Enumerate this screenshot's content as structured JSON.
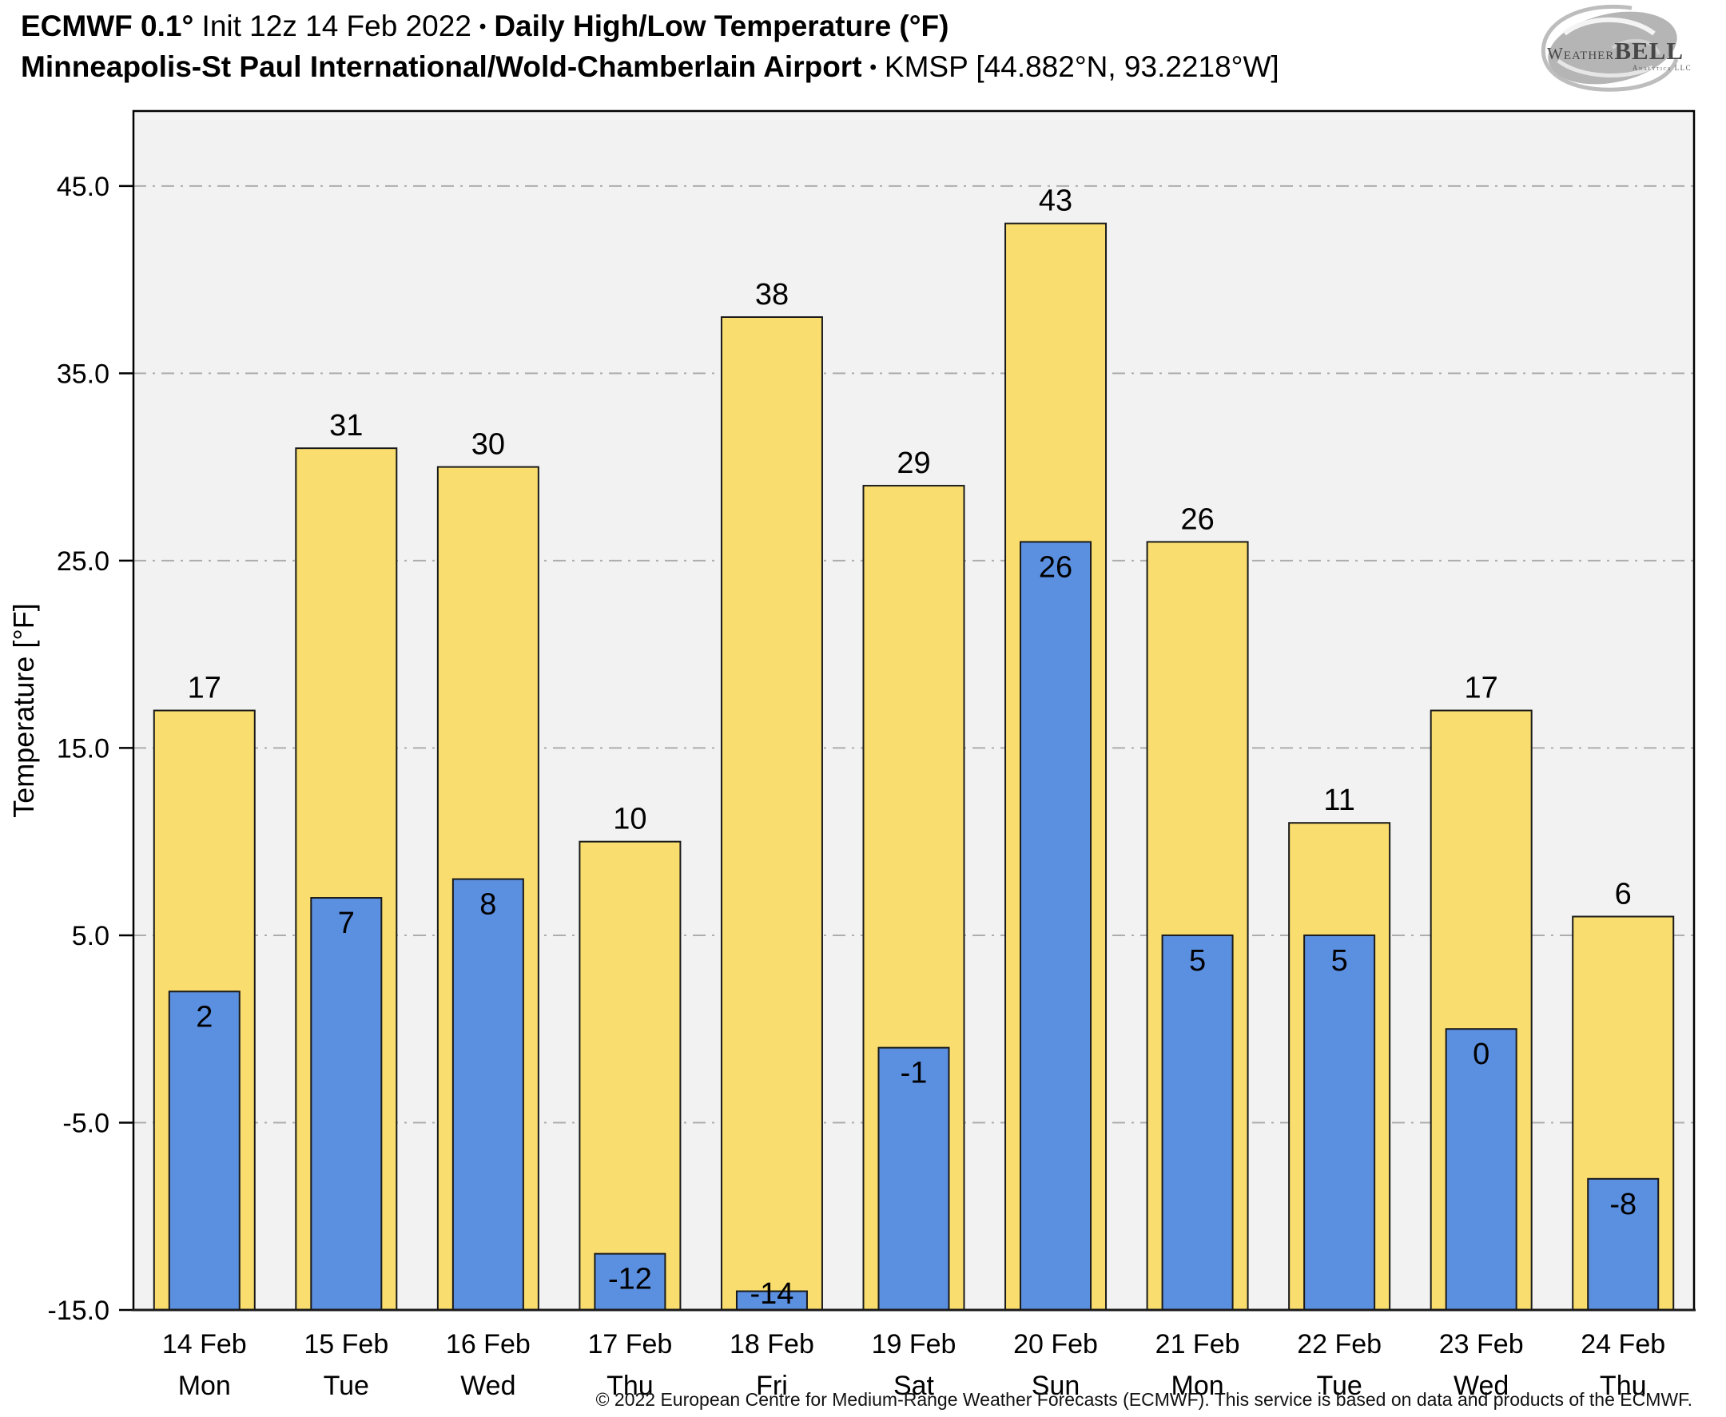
{
  "header": {
    "model": "ECMWF 0.1°",
    "init": " Init 12z 14 Feb 2022",
    "sep1": "•",
    "product": "Daily High/Low Temperature (°F)",
    "station": "Minneapolis-St Paul International/Wold-Chamberlain Airport",
    "sep2": "•",
    "station_id": "KMSP [44.882°N, 93.2218°W]"
  },
  "logo": {
    "brand_left": "Weather",
    "brand_right": "BELL",
    "brand_sub": "Analytics LLC"
  },
  "chart_data": {
    "type": "bar",
    "title": "ECMWF 0.1° Init 12z 14 Feb 2022 • Daily High/Low Temperature (°F)",
    "subtitle": "Minneapolis-St Paul International/Wold-Chamberlain Airport • KMSP [44.882°N, 93.2218°W]",
    "ylabel": "Temperature [°F]",
    "xlabel": "",
    "ylim": [
      -15,
      49
    ],
    "yticks": [
      45,
      35,
      25,
      15,
      5,
      -5,
      -15
    ],
    "ytick_labels": [
      "45.0",
      "35.0",
      "25.0",
      "15.0",
      "5.0",
      "-5.0",
      "-15.0"
    ],
    "grid": "horizontal dashed",
    "legend_position": "none",
    "categories": [
      {
        "date": "14 Feb",
        "day": "Mon"
      },
      {
        "date": "15 Feb",
        "day": "Tue"
      },
      {
        "date": "16 Feb",
        "day": "Wed"
      },
      {
        "date": "17 Feb",
        "day": "Thu"
      },
      {
        "date": "18 Feb",
        "day": "Fri"
      },
      {
        "date": "19 Feb",
        "day": "Sat"
      },
      {
        "date": "20 Feb",
        "day": "Sun"
      },
      {
        "date": "21 Feb",
        "day": "Mon"
      },
      {
        "date": "22 Feb",
        "day": "Tue"
      },
      {
        "date": "23 Feb",
        "day": "Wed"
      },
      {
        "date": "24 Feb",
        "day": "Thu"
      }
    ],
    "series": [
      {
        "name": "Daily High",
        "color": "#F9DD6F",
        "values": [
          17,
          31,
          30,
          10,
          38,
          29,
          43,
          26,
          11,
          17,
          6
        ]
      },
      {
        "name": "Daily Low",
        "color": "#5B8FE0",
        "values": [
          2,
          7,
          8,
          -12,
          -14,
          -1,
          26,
          5,
          5,
          0,
          -8
        ]
      }
    ]
  },
  "footer": {
    "copyright": "© 2022 European Centre for Medium-Range Weather Forecasts (ECMWF). This service is based on data and products of the ECMWF."
  },
  "colors": {
    "high_bar": "#F9DD6F",
    "low_bar": "#5B8FE0",
    "bar_outline": "#1A1A1A",
    "plot_bg": "#F2F2F2",
    "grid": "#ADADAD",
    "axis": "#000000",
    "text": "#000000",
    "logo_gray": "#B5B5B5"
  }
}
